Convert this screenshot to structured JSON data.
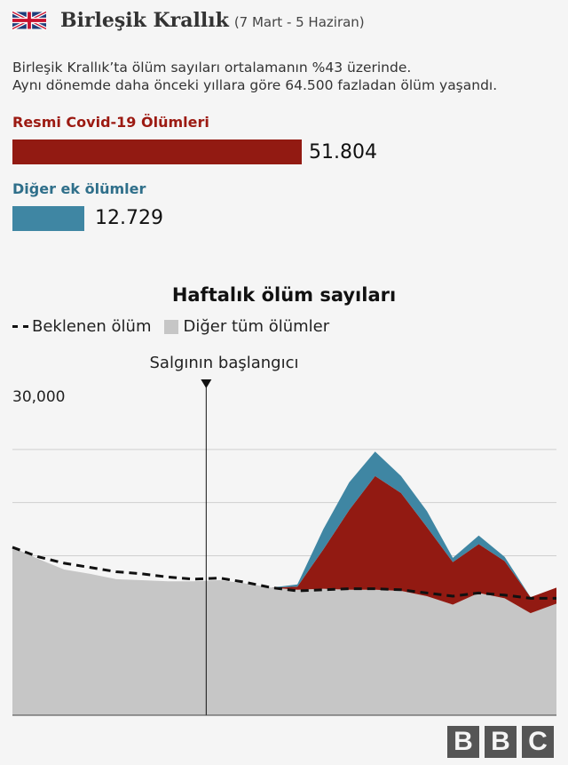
{
  "header": {
    "flag_icon": "uk-flag-icon",
    "title": "Birleşik Krallık",
    "subtitle": "(7 Mart - 5 Haziran)"
  },
  "description": {
    "line1": "Birleşik Krallık’ta ölüm sayıları ortalamanın %43 üzerinde.",
    "line2": "Aynı dönemde daha önceki yıllara göre 64.500 fazladan ölüm yaşandı."
  },
  "bars": {
    "covid": {
      "label": "Resmi Covid-19 Ölümleri",
      "value": 51804,
      "value_text": "51.804",
      "color": "#921a12"
    },
    "other": {
      "label": "Diğer ek ölümler",
      "value": 12729,
      "value_text": "12.729",
      "color": "#3f86a3"
    }
  },
  "chart_data": {
    "type": "area",
    "title": "Haftalık ölüm sayıları",
    "legend": [
      "Beklenen ölüm",
      "Diğer tüm ölümler"
    ],
    "annotation": "Salgının başlangıcı",
    "annotation_week": 8,
    "y_tick_label": "30,000",
    "y_tick_value": 30000,
    "ylim": [
      0,
      30000
    ],
    "gridlines": [
      5000,
      10000,
      15000,
      20000,
      25000
    ],
    "weeks": [
      1,
      2,
      3,
      4,
      5,
      6,
      7,
      8,
      9,
      10,
      11,
      12,
      13,
      14,
      15,
      16,
      17,
      18,
      19,
      20,
      21,
      22
    ],
    "series": [
      {
        "name": "Diğer tüm ölümler",
        "color": "#c6c6c6",
        "values": [
          15800,
          14700,
          13700,
          13300,
          12800,
          12700,
          12600,
          12600,
          12700,
          12400,
          12000,
          11800,
          11900,
          11800,
          11800,
          11700,
          11200,
          10400,
          11500,
          11000,
          9600,
          10500
        ]
      },
      {
        "name": "Resmi Covid-19 Ölümleri",
        "color": "#921a12",
        "values": [
          0,
          0,
          0,
          0,
          0,
          0,
          0,
          0,
          0,
          0,
          0.5,
          300,
          3700,
          7500,
          10700,
          9200,
          6500,
          4000,
          4600,
          3500,
          1500,
          1500
        ]
      },
      {
        "name": "Diğer ek ölümler",
        "color": "#3f86a3",
        "values": [
          0,
          0,
          0,
          0,
          0,
          0,
          0,
          0,
          0,
          0,
          0,
          200,
          1900,
          2600,
          2300,
          1600,
          1500,
          400,
          800,
          400,
          0,
          0
        ]
      }
    ],
    "expected": [
      15800,
      14900,
      14300,
      13900,
      13500,
      13300,
      13000,
      12800,
      12900,
      12500,
      12000,
      11700,
      11800,
      11900,
      11900,
      11800,
      11500,
      11200,
      11500,
      11300,
      11000,
      11000
    ]
  },
  "branding": {
    "letters": [
      "B",
      "B",
      "C"
    ]
  }
}
